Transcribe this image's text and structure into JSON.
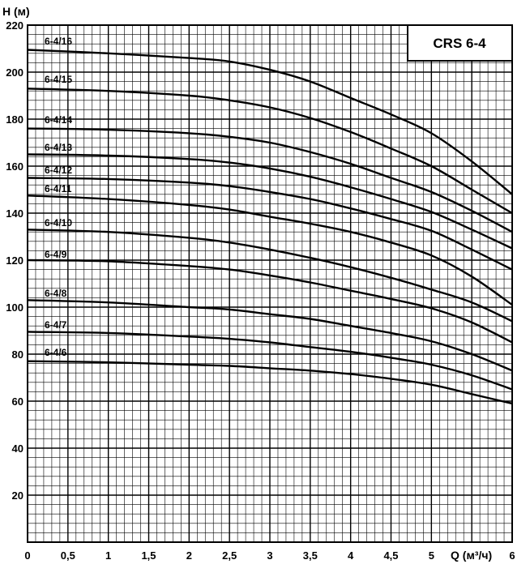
{
  "chart_data": {
    "type": "line",
    "title": "CRS 6-4",
    "xlabel": "Q (м³/ч)",
    "ylabel": "H (м)",
    "xlim": [
      0,
      6
    ],
    "ylim": [
      0,
      220
    ],
    "x_ticks": [
      "0",
      "0,5",
      "1",
      "1,5",
      "2",
      "2,5",
      "3",
      "3,5",
      "4",
      "4,5",
      "5",
      "6"
    ],
    "y_ticks": [
      "20",
      "40",
      "60",
      "80",
      "100",
      "120",
      "140",
      "160",
      "180",
      "200",
      "220"
    ],
    "grid": true,
    "series": [
      {
        "name": "6-4/16",
        "x": [
          0,
          1,
          2,
          2.5,
          3,
          3.5,
          4,
          4.5,
          5,
          5.5,
          6
        ],
        "y": [
          209.5,
          208,
          206,
          204.5,
          201,
          196,
          189,
          182,
          174,
          162,
          148
        ]
      },
      {
        "name": "6-4/15",
        "x": [
          0,
          1,
          2,
          2.5,
          3,
          3.5,
          4,
          4.5,
          5,
          5.5,
          6
        ],
        "y": [
          193,
          192,
          190,
          188,
          185,
          180.5,
          174.5,
          167.5,
          160,
          150,
          140
        ]
      },
      {
        "name": "6-4/14",
        "x": [
          0,
          1,
          2,
          2.5,
          3,
          3.5,
          4,
          4.5,
          5,
          5.5,
          6
        ],
        "y": [
          176,
          175.5,
          174,
          172.5,
          170,
          166,
          161,
          155,
          149,
          141,
          132
        ]
      },
      {
        "name": "6-4/13",
        "x": [
          0,
          1,
          2,
          2.5,
          3,
          3.5,
          4,
          4.5,
          5,
          5.5,
          6
        ],
        "y": [
          165,
          164.5,
          163,
          161.5,
          159,
          155.5,
          151,
          146,
          140.5,
          133,
          125
        ]
      },
      {
        "name": "6-4/12",
        "x": [
          0,
          1,
          2,
          2.5,
          3,
          3.5,
          4,
          4.5,
          5,
          5.5,
          6
        ],
        "y": [
          155,
          154.5,
          153,
          151.5,
          149,
          146,
          142,
          137.5,
          132.5,
          124.5,
          116
        ]
      },
      {
        "name": "6-4/11",
        "x": [
          0,
          1,
          2,
          2.5,
          3,
          3.5,
          4,
          4.5,
          5,
          5.5,
          6
        ],
        "y": [
          147.5,
          146,
          143.5,
          141.5,
          138.5,
          135.5,
          132,
          127.5,
          122,
          113,
          101
        ]
      },
      {
        "name": "6-4/10",
        "x": [
          0,
          1,
          2,
          2.5,
          3,
          3.5,
          4,
          4.5,
          5,
          5.5,
          6
        ],
        "y": [
          133,
          132,
          129.5,
          127.5,
          124.5,
          121,
          117,
          112.5,
          107.5,
          102,
          94
        ]
      },
      {
        "name": "6-4/9",
        "x": [
          0,
          1,
          2,
          2.5,
          3,
          3.5,
          4,
          4.5,
          5,
          5.5,
          6
        ],
        "y": [
          120,
          119.5,
          117.5,
          116,
          113.5,
          110.5,
          107,
          103.5,
          99.5,
          93.5,
          85
        ]
      },
      {
        "name": "6-4/8",
        "x": [
          0,
          1,
          2,
          2.5,
          3,
          3.5,
          4,
          4.5,
          5,
          5.5,
          6
        ],
        "y": [
          103,
          102,
          100,
          99,
          97,
          95,
          92,
          89,
          85.5,
          80,
          73
        ]
      },
      {
        "name": "6-4/7",
        "x": [
          0,
          1,
          2,
          2.5,
          3,
          3.5,
          4,
          4.5,
          5,
          5.5,
          6
        ],
        "y": [
          89.5,
          89,
          87.5,
          86.5,
          85,
          83,
          81,
          78.5,
          75.5,
          71,
          65
        ]
      },
      {
        "name": "6-4/6",
        "x": [
          0,
          1,
          2,
          2.5,
          3,
          3.5,
          4,
          4.5,
          5,
          5.5,
          6
        ],
        "y": [
          77,
          76.5,
          75.5,
          75,
          74,
          73,
          71.5,
          69.5,
          67,
          63,
          59
        ]
      }
    ]
  }
}
